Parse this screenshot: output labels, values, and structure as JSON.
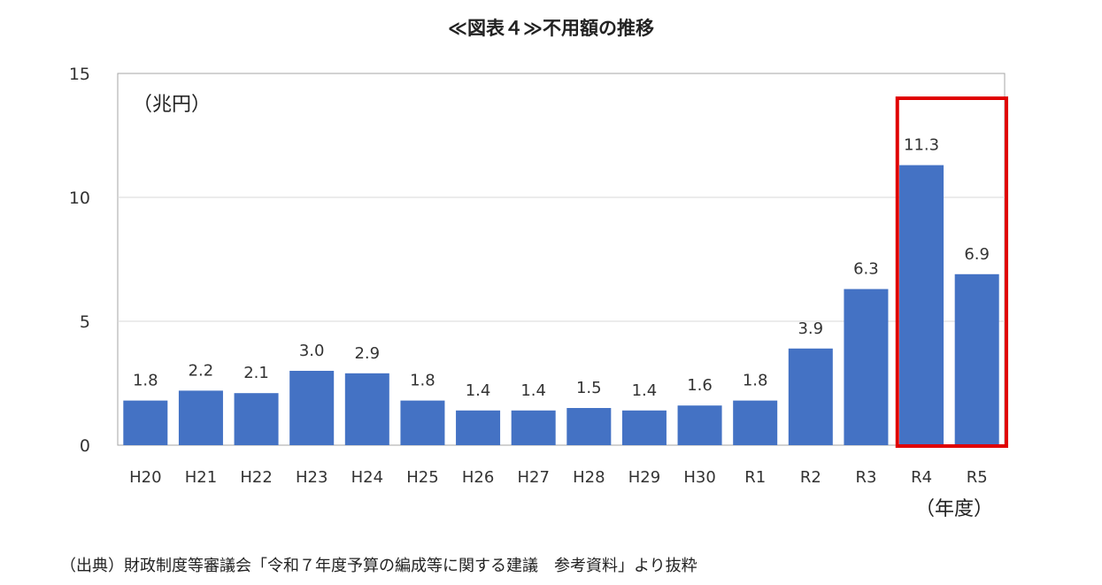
{
  "title": "≪図表４≫不用額の推移",
  "unit_label": "（兆円）",
  "xaxis_unit_label": "（年度）",
  "source": "（出典）財政制度等審議会「令和７年度予算の編成等に関する建議　参考資料」より抜粋",
  "chart_data": {
    "type": "bar",
    "categories": [
      "H20",
      "H21",
      "H22",
      "H23",
      "H24",
      "H25",
      "H26",
      "H27",
      "H28",
      "H29",
      "H30",
      "R1",
      "R2",
      "R3",
      "R4",
      "R5"
    ],
    "values": [
      1.8,
      2.2,
      2.1,
      3.0,
      2.9,
      1.8,
      1.4,
      1.4,
      1.5,
      1.4,
      1.6,
      1.8,
      3.9,
      6.3,
      11.3,
      6.9
    ],
    "value_labels": [
      "1.8",
      "2.2",
      "2.1",
      "3.0",
      "2.9",
      "1.8",
      "1.4",
      "1.4",
      "1.5",
      "1.4",
      "1.6",
      "1.8",
      "3.9",
      "6.3",
      "11.3",
      "6.9"
    ],
    "ylim": [
      0,
      15
    ],
    "yticks": [
      0,
      5,
      10,
      15
    ],
    "ylabel": "（兆円）",
    "xlabel": "（年度）",
    "grid": true,
    "bar_color": "#4472c4",
    "highlight": {
      "categories": [
        "R4",
        "R5"
      ],
      "color": "#e00000"
    }
  }
}
